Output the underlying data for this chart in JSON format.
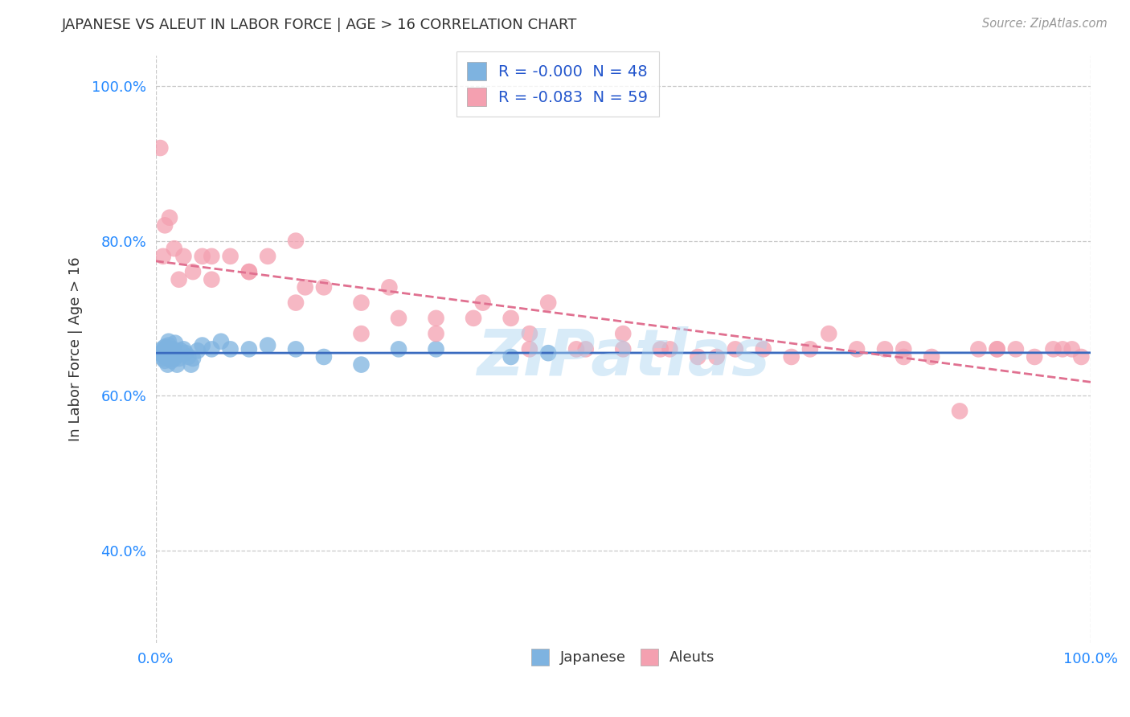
{
  "title": "JAPANESE VS ALEUT IN LABOR FORCE | AGE > 16 CORRELATION CHART",
  "source": "Source: ZipAtlas.com",
  "ylabel": "In Labor Force | Age > 16",
  "xlim": [
    0.0,
    1.0
  ],
  "ylim": [
    0.28,
    1.04
  ],
  "yticks": [
    0.4,
    0.6,
    0.8,
    1.0
  ],
  "ytick_labels": [
    "40.0%",
    "60.0%",
    "80.0%",
    "100.0%"
  ],
  "xticks": [
    0.0,
    1.0
  ],
  "xtick_labels": [
    "0.0%",
    "100.0%"
  ],
  "legend_R_japanese": "-0.000",
  "legend_N_japanese": "48",
  "legend_R_aleut": "-0.083",
  "legend_N_aleut": "59",
  "japanese_color": "#7eb3e0",
  "aleut_color": "#f4a0b0",
  "japanese_line_color": "#3a6bbf",
  "aleut_line_color": "#e07090",
  "background_color": "#ffffff",
  "grid_color": "#c8c8c8",
  "watermark": "ZIPatlas",
  "japanese_x": [
    0.005,
    0.007,
    0.008,
    0.009,
    0.01,
    0.01,
    0.01,
    0.01,
    0.011,
    0.012,
    0.012,
    0.013,
    0.013,
    0.014,
    0.014,
    0.015,
    0.015,
    0.016,
    0.016,
    0.017,
    0.018,
    0.018,
    0.019,
    0.02,
    0.021,
    0.022,
    0.023,
    0.025,
    0.027,
    0.03,
    0.032,
    0.035,
    0.038,
    0.04,
    0.045,
    0.05,
    0.06,
    0.07,
    0.08,
    0.1,
    0.12,
    0.15,
    0.18,
    0.22,
    0.26,
    0.3,
    0.38,
    0.42
  ],
  "japanese_y": [
    0.655,
    0.66,
    0.648,
    0.652,
    0.66,
    0.663,
    0.65,
    0.645,
    0.658,
    0.662,
    0.655,
    0.64,
    0.65,
    0.665,
    0.67,
    0.658,
    0.648,
    0.652,
    0.66,
    0.645,
    0.655,
    0.65,
    0.66,
    0.648,
    0.668,
    0.652,
    0.64,
    0.648,
    0.658,
    0.66,
    0.655,
    0.65,
    0.64,
    0.648,
    0.658,
    0.665,
    0.66,
    0.67,
    0.66,
    0.66,
    0.665,
    0.66,
    0.65,
    0.64,
    0.66,
    0.66,
    0.65,
    0.655
  ],
  "aleut_x": [
    0.005,
    0.008,
    0.01,
    0.015,
    0.02,
    0.025,
    0.03,
    0.04,
    0.05,
    0.06,
    0.08,
    0.1,
    0.12,
    0.15,
    0.18,
    0.22,
    0.26,
    0.3,
    0.34,
    0.38,
    0.4,
    0.42,
    0.46,
    0.5,
    0.54,
    0.58,
    0.62,
    0.65,
    0.68,
    0.72,
    0.75,
    0.78,
    0.8,
    0.83,
    0.86,
    0.88,
    0.9,
    0.92,
    0.94,
    0.96,
    0.97,
    0.98,
    0.99,
    0.06,
    0.1,
    0.16,
    0.22,
    0.3,
    0.4,
    0.5,
    0.6,
    0.7,
    0.8,
    0.9,
    0.15,
    0.25,
    0.35,
    0.45,
    0.55
  ],
  "aleut_y": [
    0.92,
    0.78,
    0.82,
    0.83,
    0.79,
    0.75,
    0.78,
    0.76,
    0.78,
    0.75,
    0.78,
    0.76,
    0.78,
    0.72,
    0.74,
    0.72,
    0.7,
    0.68,
    0.7,
    0.7,
    0.66,
    0.72,
    0.66,
    0.68,
    0.66,
    0.65,
    0.66,
    0.66,
    0.65,
    0.68,
    0.66,
    0.66,
    0.66,
    0.65,
    0.58,
    0.66,
    0.66,
    0.66,
    0.65,
    0.66,
    0.66,
    0.66,
    0.65,
    0.78,
    0.76,
    0.74,
    0.68,
    0.7,
    0.68,
    0.66,
    0.65,
    0.66,
    0.65,
    0.66,
    0.8,
    0.74,
    0.72,
    0.66,
    0.66
  ]
}
